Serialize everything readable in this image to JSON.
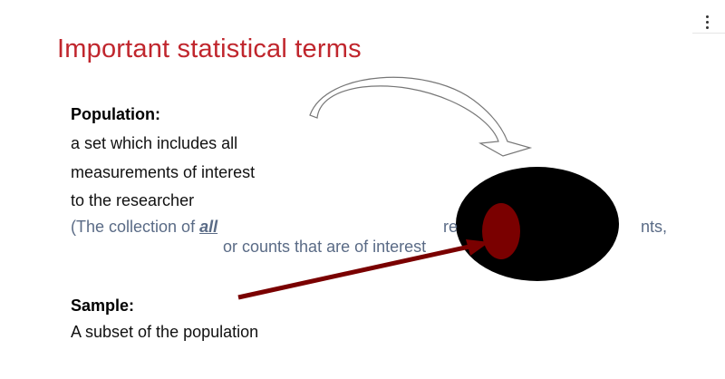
{
  "slide": {
    "title": "Important statistical terms",
    "population": {
      "heading": "Population:",
      "lines": [
        "a set which includes all",
        "measurements of interest",
        "to the researcher"
      ],
      "paren_start": "(The collection of ",
      "paren_emphasis": "all",
      "paren_fragment_right": "re",
      "paren_fragment_end": "nts,",
      "paren_line2": "or counts that are of interest"
    },
    "sample": {
      "heading": "Sample:",
      "line": "A subset of the population"
    }
  },
  "colors": {
    "title": "#c0262d",
    "paren_text": "#5a6b86",
    "population_ellipse": "#000000",
    "sample_ellipse": "#7a0000",
    "arrow": "#7a0000"
  },
  "icons": {
    "menu": "vertical-ellipsis-icon",
    "curved_arrow": "curved-arrow-icon"
  }
}
